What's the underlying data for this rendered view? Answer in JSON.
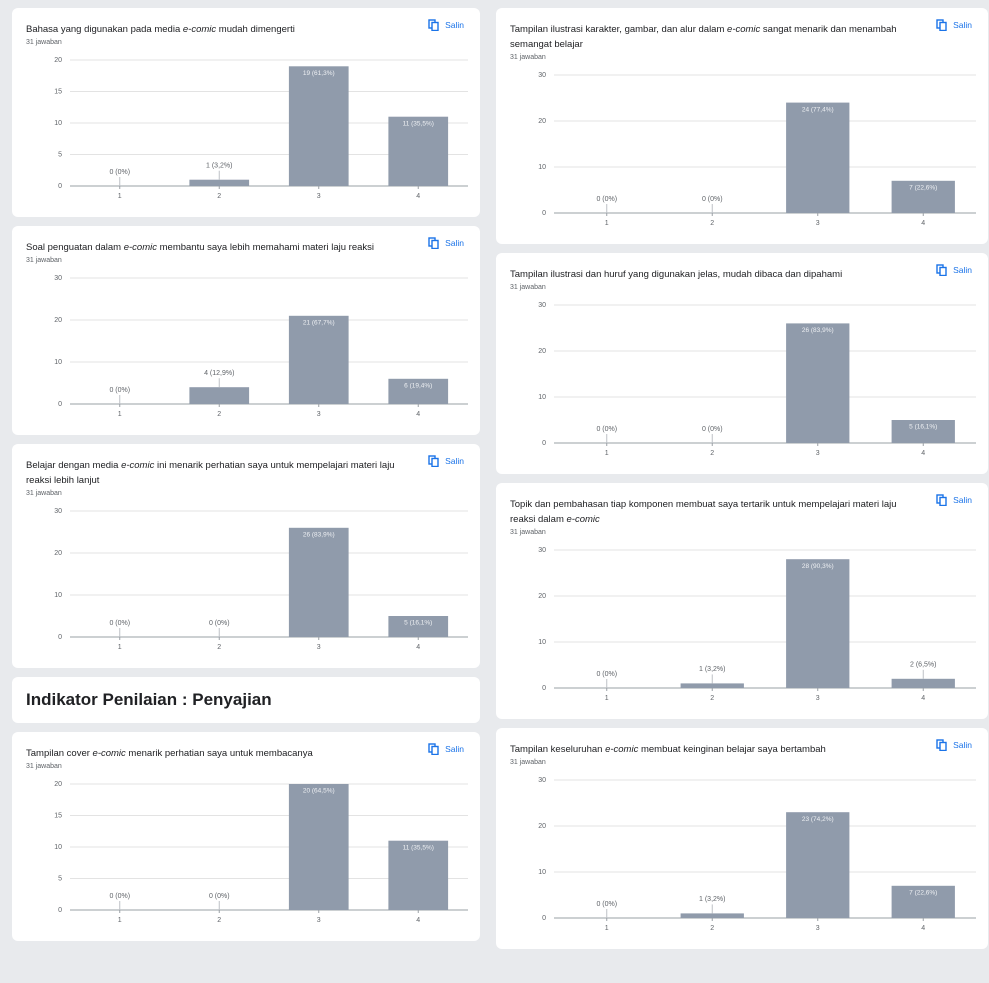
{
  "section_heading": "Indikator Penilaian : Penyajian",
  "chart_data": [
    {
      "type": "bar",
      "title": [
        "Bahasa yang digunakan pada media ",
        "e-comic",
        " mudah dimengerti"
      ],
      "subtitle": "31 jawaban",
      "action": "Salin",
      "categories": [
        "1",
        "2",
        "3",
        "4"
      ],
      "values": [
        0,
        1,
        19,
        11
      ],
      "value_labels": [
        "0 (0%)",
        "1 (3,2%)",
        "19 (61,3%)",
        "11 (35,5%)"
      ],
      "color": "#909bab",
      "ylim": [
        0,
        20
      ],
      "yticks": [
        0,
        5,
        10,
        15,
        20
      ],
      "grid": true
    },
    {
      "type": "bar",
      "title": [
        "Soal penguatan dalam ",
        "e-comic",
        " membantu saya lebih memahami materi laju reaksi"
      ],
      "subtitle": "31 jawaban",
      "action": "Salin",
      "categories": [
        "1",
        "2",
        "3",
        "4"
      ],
      "values": [
        0,
        4,
        21,
        6
      ],
      "value_labels": [
        "0 (0%)",
        "4 (12,9%)",
        "21 (67,7%)",
        "6 (19,4%)"
      ],
      "color": "#909bab",
      "ylim": [
        0,
        30
      ],
      "yticks": [
        0,
        10,
        20,
        30
      ],
      "grid": true
    },
    {
      "type": "bar",
      "title": [
        "Belajar dengan media ",
        "e-comic",
        " ini menarik perhatian saya untuk mempelajari materi laju reaksi lebih lanjut"
      ],
      "subtitle": "31 jawaban",
      "action": "Salin",
      "categories": [
        "1",
        "2",
        "3",
        "4"
      ],
      "values": [
        0,
        0,
        26,
        5
      ],
      "value_labels": [
        "0 (0%)",
        "0 (0%)",
        "26 (83,9%)",
        "5 (16,1%)"
      ],
      "color": "#909bab",
      "ylim": [
        0,
        30
      ],
      "yticks": [
        0,
        10,
        20,
        30
      ],
      "grid": true
    },
    {
      "type": "bar",
      "title": [
        "Tampilan cover ",
        "e-comic",
        " menarik perhatian saya untuk membacanya"
      ],
      "subtitle": "31 jawaban",
      "action": "Salin",
      "categories": [
        "1",
        "2",
        "3",
        "4"
      ],
      "values": [
        0,
        0,
        20,
        11
      ],
      "value_labels": [
        "0 (0%)",
        "0 (0%)",
        "20 (64,5%)",
        "11 (35,5%)"
      ],
      "color": "#909bab",
      "ylim": [
        0,
        20
      ],
      "yticks": [
        0,
        5,
        10,
        15,
        20
      ],
      "grid": true
    },
    {
      "type": "bar",
      "title": [
        "Tampilan ilustrasi karakter, gambar, dan alur dalam ",
        "e-comic",
        " sangat menarik dan menambah semangat belajar"
      ],
      "subtitle": "31 jawaban",
      "action": "Salin",
      "categories": [
        "1",
        "2",
        "3",
        "4"
      ],
      "values": [
        0,
        0,
        24,
        7
      ],
      "value_labels": [
        "0 (0%)",
        "0 (0%)",
        "24 (77,4%)",
        "7 (22,6%)"
      ],
      "color": "#909bab",
      "ylim": [
        0,
        30
      ],
      "yticks": [
        0,
        10,
        20,
        30
      ],
      "grid": true
    },
    {
      "type": "bar",
      "title": [
        "Tampilan ilustrasi dan huruf yang digunakan jelas, mudah dibaca dan dipahami"
      ],
      "subtitle": "31 jawaban",
      "action": "Salin",
      "categories": [
        "1",
        "2",
        "3",
        "4"
      ],
      "values": [
        0,
        0,
        26,
        5
      ],
      "value_labels": [
        "0 (0%)",
        "0 (0%)",
        "26 (83,9%)",
        "5 (16,1%)"
      ],
      "color": "#909bab",
      "ylim": [
        0,
        30
      ],
      "yticks": [
        0,
        10,
        20,
        30
      ],
      "grid": true
    },
    {
      "type": "bar",
      "title": [
        "Topik dan pembahasan tiap komponen membuat saya tertarik untuk mempelajari materi laju reaksi dalam ",
        "e-comic"
      ],
      "subtitle": "31 jawaban",
      "action": "Salin",
      "categories": [
        "1",
        "2",
        "3",
        "4"
      ],
      "values": [
        0,
        1,
        28,
        2
      ],
      "value_labels": [
        "0 (0%)",
        "1 (3,2%)",
        "28 (90,3%)",
        "2 (6,5%)"
      ],
      "color": "#909bab",
      "ylim": [
        0,
        30
      ],
      "yticks": [
        0,
        10,
        20,
        30
      ],
      "grid": true
    },
    {
      "type": "bar",
      "title": [
        "Tampilan keseluruhan ",
        "e-comic",
        " membuat keinginan belajar saya bertambah"
      ],
      "subtitle": "31 jawaban",
      "action": "Salin",
      "categories": [
        "1",
        "2",
        "3",
        "4"
      ],
      "values": [
        0,
        1,
        23,
        7
      ],
      "value_labels": [
        "0 (0%)",
        "1 (3,2%)",
        "23 (74,2%)",
        "7 (22,6%)"
      ],
      "color": "#909bab",
      "ylim": [
        0,
        30
      ],
      "yticks": [
        0,
        10,
        20,
        30
      ],
      "grid": true
    }
  ]
}
